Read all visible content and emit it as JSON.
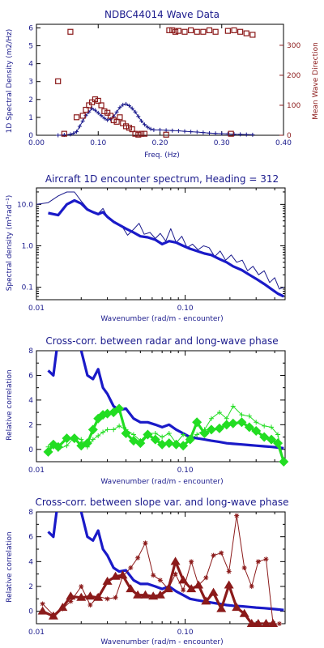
{
  "chart_data": [
    {
      "type": "scatter",
      "title": "NDBC44014 Wave Data",
      "xlabel": "Freq. (Hz)",
      "ylabel": "1D Spectral Density (m2/Hz)",
      "y2label": "Mean Wave Direction",
      "xlim": [
        0.0,
        0.4
      ],
      "ylim": [
        0,
        6.2
      ],
      "y2lim": [
        0,
        370
      ],
      "xticks": [
        "0.00",
        "0.10",
        "0.20",
        "0.30",
        "0.40"
      ],
      "yticks": [
        "0",
        "1",
        "2",
        "3",
        "4",
        "5",
        "6"
      ],
      "y2ticks": [
        "0",
        "100",
        "200",
        "300"
      ],
      "colors": {
        "axis": "#000000",
        "spectrum": "#1a1a8c",
        "direction": "#8b1a1a"
      },
      "series": [
        {
          "name": "",
          "style": "line-plus",
          "x": [
            0.035,
            0.045,
            0.055,
            0.06,
            0.065,
            0.07,
            0.075,
            0.08,
            0.085,
            0.09,
            0.095,
            0.1,
            0.105,
            0.11,
            0.115,
            0.12,
            0.125,
            0.13,
            0.135,
            0.14,
            0.145,
            0.15,
            0.155,
            0.16,
            0.165,
            0.17,
            0.175,
            0.18,
            0.185,
            0.19,
            0.2,
            0.21,
            0.22,
            0.23,
            0.24,
            0.25,
            0.26,
            0.27,
            0.28,
            0.29,
            0.3,
            0.31,
            0.32,
            0.33,
            0.34,
            0.35
          ],
          "values": [
            0,
            0.02,
            0.05,
            0.1,
            0.2,
            0.5,
            0.8,
            1.1,
            1.3,
            1.5,
            1.4,
            1.25,
            1.1,
            0.95,
            0.85,
            0.9,
            1.05,
            1.3,
            1.55,
            1.7,
            1.75,
            1.65,
            1.5,
            1.3,
            1.05,
            0.8,
            0.6,
            0.45,
            0.35,
            0.3,
            0.3,
            0.28,
            0.26,
            0.25,
            0.22,
            0.2,
            0.18,
            0.15,
            0.12,
            0.1,
            0.09,
            0.08,
            0.06,
            0.05,
            0.04,
            0.03
          ]
        },
        {
          "name": "",
          "style": "square",
          "axis": "right",
          "x": [
            0.035,
            0.045,
            0.055,
            0.065,
            0.075,
            0.08,
            0.085,
            0.09,
            0.095,
            0.1,
            0.105,
            0.11,
            0.115,
            0.12,
            0.125,
            0.13,
            0.135,
            0.14,
            0.145,
            0.15,
            0.155,
            0.16,
            0.165,
            0.17,
            0.175,
            0.21,
            0.215,
            0.22,
            0.225,
            0.23,
            0.24,
            0.25,
            0.26,
            0.27,
            0.28,
            0.29,
            0.31,
            0.315,
            0.32,
            0.33,
            0.34,
            0.35
          ],
          "values": [
            180,
            5,
            345,
            60,
            65,
            85,
            100,
            110,
            120,
            115,
            100,
            80,
            75,
            65,
            50,
            45,
            60,
            40,
            30,
            25,
            20,
            5,
            2,
            5,
            5,
            2,
            350,
            350,
            345,
            348,
            345,
            350,
            345,
            345,
            350,
            345,
            348,
            5,
            350,
            345,
            340,
            335
          ]
        }
      ]
    },
    {
      "type": "line",
      "title": "Aircraft 1D encounter spectrum, Heading = 312",
      "xlabel": "Wavenumber (rad/m - encounter)",
      "ylabel": "Spectral density (m³rad⁻¹)",
      "xscale": "log",
      "yscale": "log",
      "xlim": [
        0.01,
        0.47
      ],
      "ylim": [
        0.05,
        25
      ],
      "xticks": [
        "0.01",
        "0.10"
      ],
      "yticks": [
        "10.0",
        "1.0",
        "0.1"
      ],
      "series": [
        {
          "name": "",
          "style": "thin",
          "x": [
            0.01,
            0.012,
            0.014,
            0.016,
            0.018,
            0.02,
            0.022,
            0.024,
            0.026,
            0.028,
            0.03,
            0.032,
            0.035,
            0.038,
            0.041,
            0.045,
            0.049,
            0.053,
            0.058,
            0.063,
            0.068,
            0.074,
            0.08,
            0.087,
            0.095,
            0.103,
            0.112,
            0.122,
            0.133,
            0.145,
            0.158,
            0.172,
            0.187,
            0.204,
            0.222,
            0.242,
            0.263,
            0.286,
            0.312,
            0.34,
            0.37,
            0.4,
            0.43,
            0.46
          ],
          "values": [
            10,
            11,
            16,
            20,
            20,
            12,
            8,
            6.5,
            6,
            8,
            5,
            4,
            3.5,
            2.8,
            1.8,
            2.5,
            3.5,
            1.9,
            2.1,
            1.5,
            2,
            1.3,
            2.6,
            1.2,
            1.7,
            0.9,
            1.1,
            0.8,
            1,
            0.9,
            0.55,
            0.75,
            0.45,
            0.6,
            0.4,
            0.45,
            0.25,
            0.32,
            0.2,
            0.25,
            0.13,
            0.17,
            0.09,
            0.1
          ]
        },
        {
          "name": "",
          "style": "thick",
          "x": [
            0.012,
            0.014,
            0.016,
            0.018,
            0.02,
            0.022,
            0.024,
            0.026,
            0.028,
            0.03,
            0.033,
            0.036,
            0.04,
            0.045,
            0.05,
            0.056,
            0.063,
            0.07,
            0.078,
            0.087,
            0.097,
            0.108,
            0.12,
            0.135,
            0.15,
            0.17,
            0.19,
            0.21,
            0.24,
            0.27,
            0.3,
            0.34,
            0.38,
            0.42,
            0.46
          ],
          "values": [
            6.2,
            5.5,
            10,
            12.5,
            10.5,
            7.5,
            6.5,
            5.8,
            6.5,
            5,
            3.8,
            3.2,
            2.6,
            2.1,
            1.7,
            1.6,
            1.4,
            1.1,
            1.3,
            1.2,
            1,
            0.85,
            0.75,
            0.65,
            0.6,
            0.48,
            0.4,
            0.32,
            0.26,
            0.2,
            0.16,
            0.12,
            0.09,
            0.07,
            0.06
          ]
        }
      ]
    },
    {
      "type": "line",
      "title": "Cross-corr. between radar and long-wave phase",
      "xlabel": "Wavenumber (rad/m - encounter)",
      "ylabel": "Relative correlation",
      "xscale": "log",
      "xlim": [
        0.01,
        0.47
      ],
      "ylim": [
        -1,
        8
      ],
      "xticks": [
        "0.01",
        "0.10"
      ],
      "yticks": [
        "8",
        "6",
        "4",
        "2",
        "0"
      ],
      "series": [
        {
          "name": "",
          "style": "thick-blue",
          "x": [
            0.012,
            0.013,
            0.014,
            0.016,
            0.018,
            0.02,
            0.022,
            0.024,
            0.026,
            0.028,
            0.03,
            0.033,
            0.036,
            0.04,
            0.045,
            0.05,
            0.056,
            0.063,
            0.07,
            0.078,
            0.087,
            0.097,
            0.108,
            0.12,
            0.135,
            0.15,
            0.17,
            0.19,
            0.21,
            0.24,
            0.27,
            0.3,
            0.34,
            0.38,
            0.42,
            0.46
          ],
          "values": [
            6.4,
            6,
            9,
            9,
            9,
            8,
            6,
            5.7,
            6.5,
            5,
            4.5,
            3.5,
            3.2,
            3.3,
            2.5,
            2.2,
            2.2,
            2,
            1.8,
            2,
            1.6,
            1.3,
            1,
            0.9,
            0.8,
            0.7,
            0.6,
            0.5,
            0.45,
            0.4,
            0.35,
            0.3,
            0.25,
            0.2,
            0.15,
            0.1
          ]
        },
        {
          "name": "",
          "style": "green-plus",
          "x": [
            0.012,
            0.013,
            0.014,
            0.016,
            0.018,
            0.02,
            0.022,
            0.024,
            0.026,
            0.028,
            0.03,
            0.033,
            0.036,
            0.04,
            0.045,
            0.05,
            0.056,
            0.063,
            0.07,
            0.078,
            0.087,
            0.097,
            0.108,
            0.12,
            0.135,
            0.15,
            0.17,
            0.19,
            0.21,
            0.24,
            0.27,
            0.3,
            0.34,
            0.38,
            0.42,
            0.46
          ],
          "values": [
            0.2,
            0.2,
            0,
            0.3,
            1,
            0.8,
            0.2,
            0.8,
            1.1,
            1.4,
            1.6,
            1.6,
            1.9,
            1.6,
            1.2,
            0.7,
            1.3,
            1.3,
            1,
            1.3,
            0.5,
            1.2,
            0.8,
            1.2,
            1.6,
            2.5,
            3,
            2.5,
            3.5,
            2.8,
            2.7,
            2.2,
            1.9,
            1.8,
            1.2,
            -1
          ]
        },
        {
          "name": "",
          "style": "green-diamond",
          "x": [
            0.012,
            0.013,
            0.014,
            0.016,
            0.018,
            0.02,
            0.022,
            0.024,
            0.026,
            0.028,
            0.03,
            0.033,
            0.036,
            0.04,
            0.045,
            0.05,
            0.056,
            0.063,
            0.07,
            0.078,
            0.087,
            0.097,
            0.108,
            0.12,
            0.135,
            0.15,
            0.17,
            0.19,
            0.21,
            0.24,
            0.27,
            0.3,
            0.34,
            0.38,
            0.42,
            0.46
          ],
          "values": [
            -0.2,
            0.4,
            0.2,
            0.9,
            0.9,
            0.3,
            0.5,
            1.6,
            2.5,
            2.8,
            2.9,
            3,
            3.3,
            1.3,
            0.7,
            0.5,
            1.2,
            0.8,
            0.4,
            0.5,
            0.4,
            0.3,
            0.8,
            2.2,
            1.3,
            1.6,
            1.7,
            2,
            2.1,
            2.2,
            1.8,
            1.5,
            1,
            0.8,
            0.5,
            -1
          ]
        }
      ]
    },
    {
      "type": "line",
      "title": "Cross-corr. between slope var. and long-wave phase",
      "xlabel": "Wavenumber (rad/m - encounter)",
      "ylabel": "Relative correlation",
      "xscale": "log",
      "xlim": [
        0.01,
        0.47
      ],
      "ylim": [
        -1,
        8
      ],
      "xticks": [
        "0.01",
        "0.10"
      ],
      "yticks": [
        "8",
        "6",
        "4",
        "2",
        "0"
      ],
      "series": [
        {
          "name": "",
          "style": "thick-blue",
          "x": [
            0.012,
            0.013,
            0.014,
            0.016,
            0.018,
            0.02,
            0.022,
            0.024,
            0.026,
            0.028,
            0.03,
            0.033,
            0.036,
            0.04,
            0.045,
            0.05,
            0.056,
            0.063,
            0.07,
            0.078,
            0.087,
            0.097,
            0.108,
            0.12,
            0.135,
            0.15,
            0.17,
            0.19,
            0.21,
            0.24,
            0.27,
            0.3,
            0.34,
            0.38,
            0.42,
            0.46
          ],
          "values": [
            6.4,
            6,
            9,
            9,
            9,
            8,
            6,
            5.7,
            6.5,
            5,
            4.5,
            3.5,
            3.2,
            3.3,
            2.5,
            2.2,
            2.2,
            2,
            1.8,
            2,
            1.6,
            1.3,
            1,
            0.9,
            0.8,
            0.7,
            0.6,
            0.5,
            0.45,
            0.4,
            0.35,
            0.3,
            0.25,
            0.2,
            0.15,
            0.1
          ]
        },
        {
          "name": "",
          "style": "darkred-star",
          "x": [
            0.011,
            0.013,
            0.015,
            0.017,
            0.02,
            0.023,
            0.026,
            0.03,
            0.034,
            0.038,
            0.043,
            0.048,
            0.054,
            0.061,
            0.068,
            0.077,
            0.086,
            0.097,
            0.11,
            0.123,
            0.138,
            0.155,
            0.175,
            0.197,
            0.222,
            0.25,
            0.28,
            0.31,
            0.35,
            0.39,
            0.43
          ],
          "values": [
            0.6,
            -0.3,
            0.2,
            0.8,
            2,
            0.5,
            1.2,
            1,
            1.1,
            2.8,
            3.5,
            4.3,
            5.5,
            2.9,
            2.5,
            1.8,
            3,
            1.7,
            4,
            2.1,
            2.7,
            4.5,
            4.7,
            3.2,
            7.7,
            3.5,
            2,
            4,
            4.2,
            -1,
            -1
          ]
        },
        {
          "name": "",
          "style": "darkred-triangle",
          "x": [
            0.011,
            0.013,
            0.015,
            0.017,
            0.02,
            0.023,
            0.026,
            0.03,
            0.034,
            0.038,
            0.043,
            0.048,
            0.054,
            0.061,
            0.068,
            0.077,
            0.086,
            0.097,
            0.11,
            0.123,
            0.138,
            0.155,
            0.175,
            0.197,
            0.222,
            0.25,
            0.28,
            0.31,
            0.35,
            0.39
          ],
          "values": [
            0,
            -0.4,
            0.3,
            1.2,
            1.1,
            1.2,
            1.1,
            2.4,
            2.8,
            2.9,
            1.8,
            1.3,
            1.3,
            1.2,
            1.3,
            1.8,
            4,
            2.5,
            1.8,
            2.1,
            0.8,
            1.5,
            0.2,
            2.1,
            0.3,
            -0.2,
            -1,
            -1,
            -1,
            -1
          ]
        }
      ]
    }
  ]
}
